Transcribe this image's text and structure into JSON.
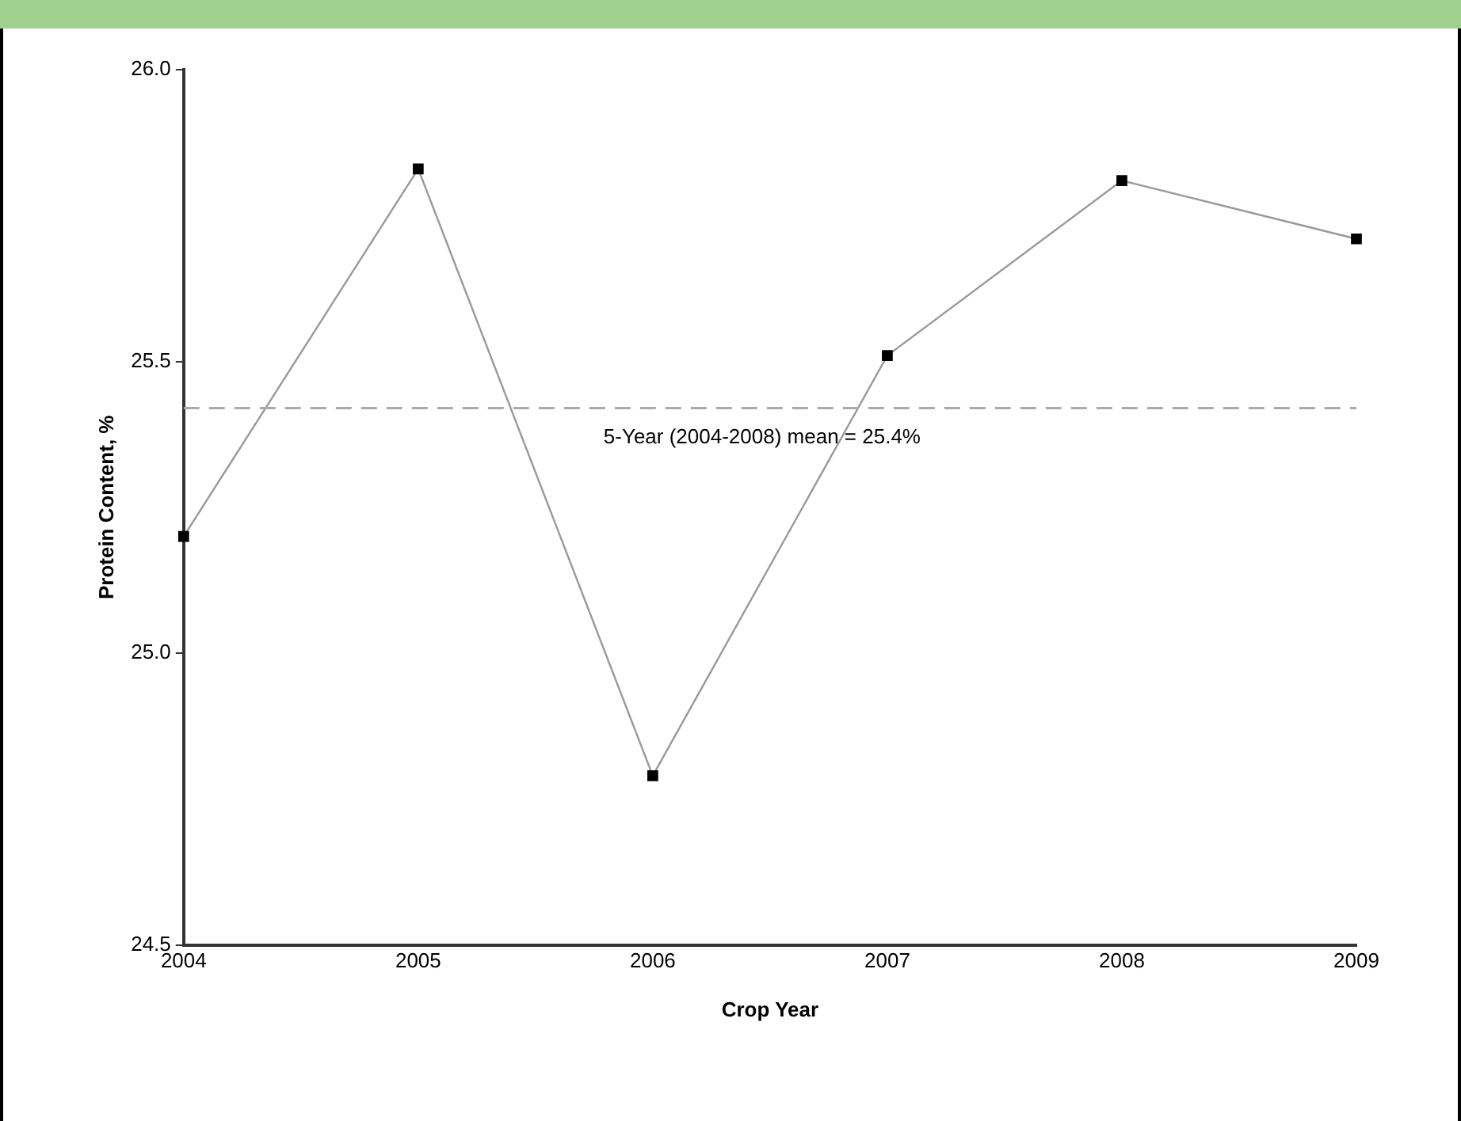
{
  "chart_data": {
    "type": "line",
    "xlabel": "Crop Year",
    "ylabel": "Protein Content, %",
    "x": [
      2004,
      2005,
      2006,
      2007,
      2008,
      2009
    ],
    "series": [
      {
        "color": "#999999",
        "values": [
          25.2,
          25.83,
          24.79,
          25.51,
          25.81,
          25.71
        ]
      }
    ],
    "xlim": [
      2004,
      2009
    ],
    "xticks": [
      2004,
      2005,
      2006,
      2007,
      2008,
      2009
    ],
    "ylim": [
      24.5,
      26.0
    ],
    "yticks": [
      {
        "value": 24.5,
        "label": "24.5"
      },
      {
        "value": 25,
        "label": "25.0"
      },
      {
        "value": 25.5,
        "label": "25.5"
      },
      {
        "value": 26,
        "label": "26.0"
      }
    ],
    "ref_lines": [
      {
        "axis": "y",
        "value": 25.42,
        "label": "5-Year (2004-2008) mean = 25.4%",
        "color": "#aaaaaa",
        "line_style": "dashed"
      }
    ],
    "marker": "square",
    "line_style": "solid",
    "grid": false,
    "legend": false
  }
}
